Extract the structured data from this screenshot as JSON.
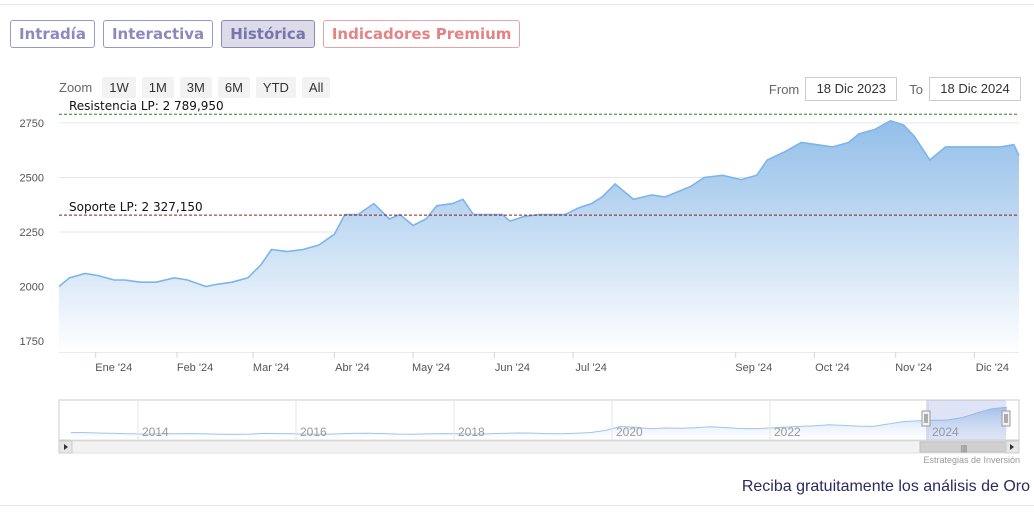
{
  "tabs": [
    {
      "label": "Intradía",
      "state": "normal"
    },
    {
      "label": "Interactiva",
      "state": "normal"
    },
    {
      "label": "Histórica",
      "state": "active"
    },
    {
      "label": "Indicadores Premium",
      "state": "premium"
    }
  ],
  "zoom": {
    "label": "Zoom",
    "buttons": [
      "1W",
      "1M",
      "3M",
      "6M",
      "YTD",
      "All"
    ]
  },
  "range": {
    "from_label": "From",
    "from_value": "18 Dic 2023",
    "to_label": "To",
    "to_value": "18 Dic 2024"
  },
  "credit": "Estrategias de Inversión",
  "promo": "Reciba gratuitamente los análisis de Oro",
  "colors": {
    "line": "#7cb5ec",
    "fill_top": "#8dbbe8",
    "fill_bottom": "#ffffff",
    "resistance": "#2e7d32",
    "support": "#8b1a1a",
    "tab": "#8d89bd",
    "premium": "#e48383"
  },
  "chart_data": {
    "type": "area",
    "xlabel": "",
    "ylabel": "",
    "x_range": [
      "2023-12-18",
      "2024-12-18"
    ],
    "ylim": [
      1700,
      2800
    ],
    "yticks": [
      1750,
      2000,
      2250,
      2500,
      2750
    ],
    "grid": true,
    "x_ticks": [
      {
        "date": "2024-01-01",
        "label": "Ene '24"
      },
      {
        "date": "2024-02-01",
        "label": "Feb '24"
      },
      {
        "date": "2024-03-01",
        "label": "Mar '24"
      },
      {
        "date": "2024-04-01",
        "label": "Abr '24"
      },
      {
        "date": "2024-05-01",
        "label": "May '24"
      },
      {
        "date": "2024-06-01",
        "label": "Jun '24"
      },
      {
        "date": "2024-07-01",
        "label": "Jul '24"
      },
      {
        "date": "2024-09-01",
        "label": "Sep '24"
      },
      {
        "date": "2024-10-01",
        "label": "Oct '24"
      },
      {
        "date": "2024-11-01",
        "label": "Nov '24"
      },
      {
        "date": "2024-12-01",
        "label": "Dic '24"
      }
    ],
    "series": [
      {
        "x": [
          "2023-12-18",
          "2023-12-22",
          "2023-12-28",
          "2024-01-02",
          "2024-01-08",
          "2024-01-12",
          "2024-01-18",
          "2024-01-24",
          "2024-01-31",
          "2024-02-05",
          "2024-02-12",
          "2024-02-16",
          "2024-02-22",
          "2024-02-28",
          "2024-03-04",
          "2024-03-08",
          "2024-03-14",
          "2024-03-20",
          "2024-03-26",
          "2024-04-01",
          "2024-04-05",
          "2024-04-10",
          "2024-04-16",
          "2024-04-22",
          "2024-04-26",
          "2024-05-01",
          "2024-05-06",
          "2024-05-10",
          "2024-05-16",
          "2024-05-20",
          "2024-05-24",
          "2024-05-30",
          "2024-06-04",
          "2024-06-07",
          "2024-06-12",
          "2024-06-18",
          "2024-06-24",
          "2024-06-28",
          "2024-07-03",
          "2024-07-08",
          "2024-07-12",
          "2024-07-17",
          "2024-07-24",
          "2024-07-31",
          "2024-08-05",
          "2024-08-09",
          "2024-08-15",
          "2024-08-20",
          "2024-08-27",
          "2024-09-03",
          "2024-09-09",
          "2024-09-13",
          "2024-09-20",
          "2024-09-26",
          "2024-10-02",
          "2024-10-08",
          "2024-10-14",
          "2024-10-18",
          "2024-10-24",
          "2024-10-30",
          "2024-11-04",
          "2024-11-08",
          "2024-11-14",
          "2024-11-20",
          "2024-11-26",
          "2024-12-02",
          "2024-12-06",
          "2024-12-11",
          "2024-12-16",
          "2024-12-18"
        ],
        "y": [
          2000,
          2040,
          2060,
          2050,
          2030,
          2030,
          2020,
          2020,
          2040,
          2030,
          2000,
          2010,
          2020,
          2040,
          2100,
          2170,
          2160,
          2170,
          2190,
          2240,
          2330,
          2330,
          2380,
          2310,
          2330,
          2280,
          2310,
          2370,
          2380,
          2400,
          2330,
          2330,
          2330,
          2300,
          2320,
          2330,
          2330,
          2330,
          2360,
          2380,
          2410,
          2470,
          2400,
          2420,
          2410,
          2430,
          2460,
          2500,
          2510,
          2490,
          2510,
          2580,
          2620,
          2660,
          2650,
          2640,
          2660,
          2700,
          2720,
          2760,
          2740,
          2690,
          2580,
          2640,
          2640,
          2640,
          2640,
          2640,
          2650,
          2600
        ]
      }
    ],
    "annotations": [
      {
        "label": "Resistencia LP: 2 789,950",
        "value": 2789.95,
        "style": "dashed"
      },
      {
        "label": "Soporte LP: 2 327,150",
        "value": 2327.15,
        "style": "dashed"
      }
    ],
    "navigator": {
      "labels": [
        "2014",
        "2016",
        "2018",
        "2020",
        "2022",
        "2024"
      ]
    }
  }
}
